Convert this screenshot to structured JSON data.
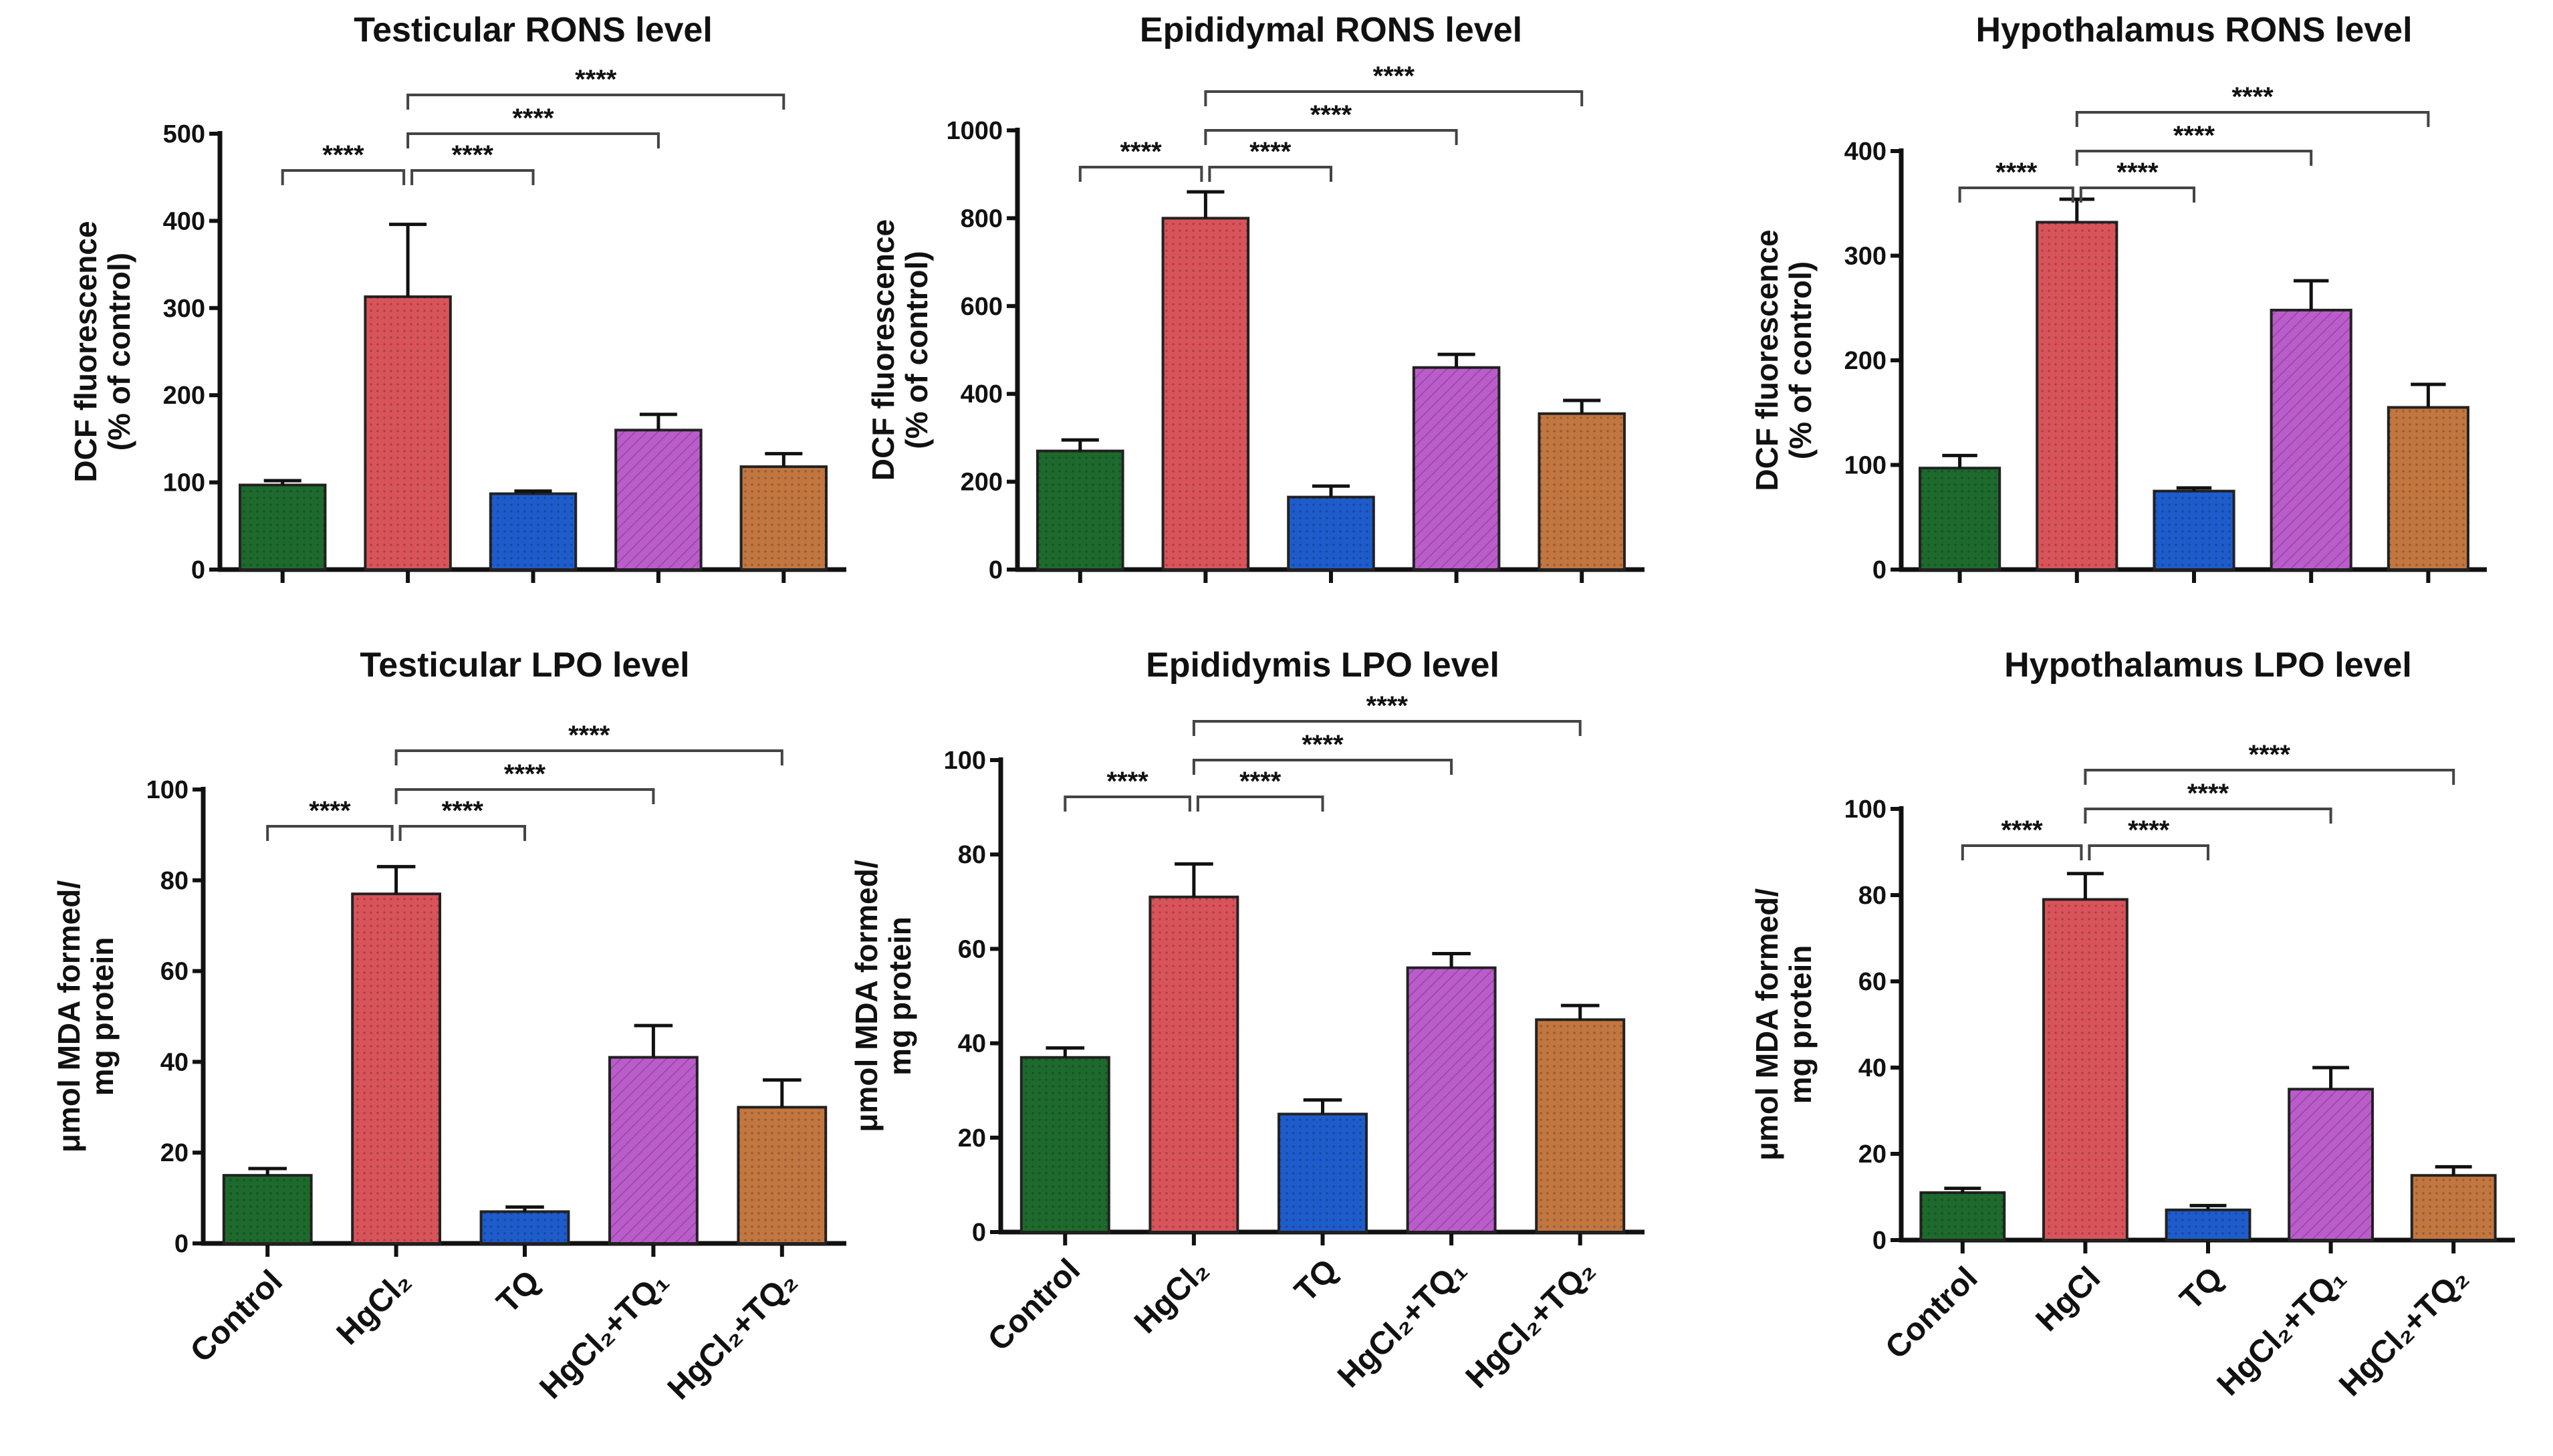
{
  "colors": [
    "#1d6a2c",
    "#d9545a",
    "#1e5ccc",
    "#bb5ccb",
    "#c27640"
  ],
  "chart_data": [
    {
      "type": "bar",
      "title": "Testicular RONS level",
      "ylabel": [
        "DCF fluorescence",
        "(% of control)"
      ],
      "categories": [
        "",
        "",
        "",
        "",
        ""
      ],
      "ylim": [
        0,
        500
      ],
      "yticks": [
        0,
        100,
        200,
        300,
        400,
        500
      ],
      "values": [
        97,
        313,
        87,
        160,
        118
      ],
      "errors": [
        5,
        83,
        3,
        18,
        15
      ],
      "comparisons": [
        {
          "a": 0,
          "b": 1,
          "label": "****"
        },
        {
          "a": 1,
          "b": 2,
          "label": "****"
        },
        {
          "a": 1,
          "b": 3,
          "label": "****"
        },
        {
          "a": 1,
          "b": 4,
          "label": "****"
        }
      ]
    },
    {
      "type": "bar",
      "title": "Epididymal RONS level",
      "ylabel": [
        "DCF fluorescence",
        "(% of control)"
      ],
      "categories": [
        "",
        "",
        "",
        "",
        ""
      ],
      "ylim": [
        0,
        1000
      ],
      "yticks": [
        0,
        200,
        400,
        600,
        800,
        1000
      ],
      "values": [
        270,
        800,
        165,
        460,
        355
      ],
      "errors": [
        25,
        60,
        25,
        30,
        30
      ],
      "comparisons": [
        {
          "a": 0,
          "b": 1,
          "label": "****"
        },
        {
          "a": 1,
          "b": 2,
          "label": "****"
        },
        {
          "a": 1,
          "b": 3,
          "label": "****"
        },
        {
          "a": 1,
          "b": 4,
          "label": "****"
        }
      ]
    },
    {
      "type": "bar",
      "title": "Hypothalamus RONS level",
      "ylabel": [
        "DCF fluorescence",
        "(% of control)"
      ],
      "categories": [
        "",
        "",
        "",
        "",
        ""
      ],
      "ylim": [
        0,
        400
      ],
      "yticks": [
        0,
        100,
        200,
        300,
        400
      ],
      "values": [
        97,
        332,
        75,
        248,
        155
      ],
      "errors": [
        12,
        22,
        3,
        28,
        22
      ],
      "comparisons": [
        {
          "a": 0,
          "b": 1,
          "label": "****"
        },
        {
          "a": 1,
          "b": 2,
          "label": "****"
        },
        {
          "a": 1,
          "b": 3,
          "label": "****"
        },
        {
          "a": 1,
          "b": 4,
          "label": "****"
        }
      ]
    },
    {
      "type": "bar",
      "title": "Testicular LPO level",
      "ylabel": [
        "μmol MDA formed/",
        "mg protein"
      ],
      "categories": [
        "Control",
        "HgCl₂",
        "TQ",
        "HgCl₂+TQ₁",
        "HgCl₂+TQ₂"
      ],
      "ylim": [
        0,
        100
      ],
      "yticks": [
        0,
        20,
        40,
        60,
        80,
        100
      ],
      "values": [
        15,
        77,
        7,
        41,
        30
      ],
      "errors": [
        1.5,
        6,
        1,
        7,
        6
      ],
      "comparisons": [
        {
          "a": 0,
          "b": 1,
          "label": "****"
        },
        {
          "a": 1,
          "b": 2,
          "label": "****"
        },
        {
          "a": 1,
          "b": 3,
          "label": "****"
        },
        {
          "a": 1,
          "b": 4,
          "label": "****"
        }
      ]
    },
    {
      "type": "bar",
      "title": "Epididymis LPO level",
      "ylabel": [
        "μmol MDA formed/",
        "mg protein"
      ],
      "categories": [
        "Control",
        "HgCl₂",
        "TQ",
        "HgCl₂+TQ₁",
        "HgCl₂+TQ₂"
      ],
      "ylim": [
        0,
        100
      ],
      "yticks": [
        0,
        20,
        40,
        60,
        80,
        100
      ],
      "values": [
        37,
        71,
        25,
        56,
        45
      ],
      "errors": [
        2,
        7,
        3,
        3,
        3
      ],
      "comparisons": [
        {
          "a": 0,
          "b": 1,
          "label": "****"
        },
        {
          "a": 1,
          "b": 2,
          "label": "****"
        },
        {
          "a": 1,
          "b": 3,
          "label": "****"
        },
        {
          "a": 1,
          "b": 4,
          "label": "****"
        }
      ]
    },
    {
      "type": "bar",
      "title": "Hypothalamus LPO level",
      "ylabel": [
        "μmol MDA formed/",
        "mg protein"
      ],
      "categories": [
        "Control",
        "HgCl",
        "TQ",
        "HgCl₂+TQ₁",
        "HgCl₂+TQ₂"
      ],
      "ylim": [
        0,
        100
      ],
      "yticks": [
        0,
        20,
        40,
        60,
        80,
        100
      ],
      "values": [
        11,
        79,
        7,
        35,
        15
      ],
      "errors": [
        1,
        6,
        1,
        5,
        2
      ],
      "comparisons": [
        {
          "a": 0,
          "b": 1,
          "label": "****"
        },
        {
          "a": 1,
          "b": 2,
          "label": "****"
        },
        {
          "a": 1,
          "b": 3,
          "label": "****"
        },
        {
          "a": 1,
          "b": 4,
          "label": "****"
        }
      ]
    }
  ]
}
